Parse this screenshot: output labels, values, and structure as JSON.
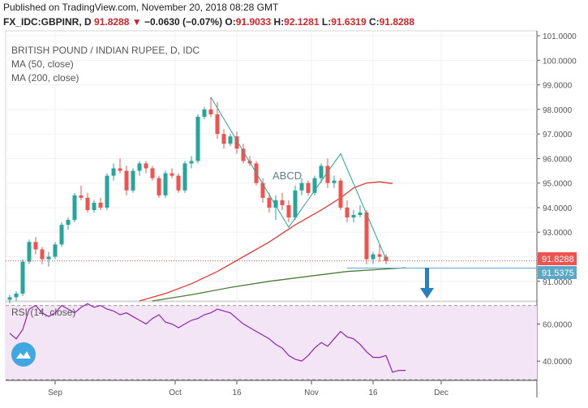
{
  "header": {
    "published": "Published on TradingView.com, November 20, 2018 08:28 GMT",
    "symbol": "FX_IDC:GBPINR, D",
    "last": "91.8288",
    "change_arrow": "▼",
    "change": "−0.0630 (−0.07%)",
    "o_label": "O:",
    "o_value": "91.9033",
    "h_label": "H:",
    "h_value": "92.1281",
    "l_label": "L:",
    "l_value": "91.6319",
    "c_label": "C:",
    "c_value": "91.8288"
  },
  "legend": {
    "title": "BRITISH POUND / INDIAN RUPEE, D, IDC",
    "ma50": "MA (50, close)",
    "ma200": "MA (200, close)",
    "rsi": "RSI (14, close)"
  },
  "annotations": {
    "abcd": "ABCD",
    "price_tag": "91.8288",
    "target_tag": "91.5375"
  },
  "colors": {
    "up": "#26a69a",
    "down": "#ef5350",
    "ma50": "#e53935",
    "ma200": "#4e7a3a",
    "rsi": "#8e24aa",
    "rsi_band": "#f3e5f5",
    "pattern": "#26a69a",
    "target_line": "#5aa9c6",
    "arrow": "#2a7fc1"
  },
  "icons": {
    "rsi_badge": "cloud-icon",
    "arrow": "down-arrow-icon"
  },
  "chart_data": {
    "type": "candlestick",
    "price_axis": {
      "ticks": [
        "101.0000",
        "100.0000",
        "99.0000",
        "98.0000",
        "97.0000",
        "96.0000",
        "95.0000",
        "94.0000",
        "93.0000",
        "92.0000",
        "91.0000"
      ],
      "ylim": [
        90.2,
        101.2
      ]
    },
    "x_axis": {
      "ticks": [
        "Sep",
        "Oct",
        "16",
        "Nov",
        "16",
        "Dec"
      ]
    },
    "candles": [
      {
        "o": 90.25,
        "h": 90.45,
        "l": 90.1,
        "c": 90.35
      },
      {
        "o": 90.35,
        "h": 90.6,
        "l": 90.2,
        "c": 90.5
      },
      {
        "o": 90.5,
        "h": 91.9,
        "l": 90.4,
        "c": 91.8
      },
      {
        "o": 91.8,
        "h": 92.7,
        "l": 91.7,
        "c": 92.6
      },
      {
        "o": 92.6,
        "h": 92.8,
        "l": 92.1,
        "c": 92.3
      },
      {
        "o": 92.3,
        "h": 92.4,
        "l": 91.7,
        "c": 91.9
      },
      {
        "o": 91.9,
        "h": 92.2,
        "l": 91.6,
        "c": 92.0
      },
      {
        "o": 92.0,
        "h": 92.6,
        "l": 91.9,
        "c": 92.5
      },
      {
        "o": 92.5,
        "h": 93.4,
        "l": 92.4,
        "c": 93.3
      },
      {
        "o": 93.3,
        "h": 93.6,
        "l": 93.1,
        "c": 93.5
      },
      {
        "o": 93.5,
        "h": 94.6,
        "l": 93.4,
        "c": 94.5
      },
      {
        "o": 94.5,
        "h": 94.9,
        "l": 94.3,
        "c": 94.4
      },
      {
        "o": 94.4,
        "h": 94.6,
        "l": 93.8,
        "c": 93.9
      },
      {
        "o": 93.9,
        "h": 94.3,
        "l": 93.8,
        "c": 94.2
      },
      {
        "o": 94.2,
        "h": 94.4,
        "l": 93.9,
        "c": 94.0
      },
      {
        "o": 94.0,
        "h": 95.4,
        "l": 93.9,
        "c": 95.3
      },
      {
        "o": 95.3,
        "h": 95.8,
        "l": 95.1,
        "c": 95.6
      },
      {
        "o": 95.6,
        "h": 96.0,
        "l": 95.4,
        "c": 95.5
      },
      {
        "o": 95.5,
        "h": 95.7,
        "l": 94.5,
        "c": 94.7
      },
      {
        "o": 94.7,
        "h": 95.6,
        "l": 94.6,
        "c": 95.5
      },
      {
        "o": 95.5,
        "h": 95.9,
        "l": 95.3,
        "c": 95.8
      },
      {
        "o": 95.8,
        "h": 95.9,
        "l": 95.4,
        "c": 95.6
      },
      {
        "o": 95.6,
        "h": 95.7,
        "l": 95.1,
        "c": 95.2
      },
      {
        "o": 95.2,
        "h": 95.3,
        "l": 94.4,
        "c": 94.5
      },
      {
        "o": 94.5,
        "h": 95.5,
        "l": 94.4,
        "c": 95.4
      },
      {
        "o": 95.4,
        "h": 95.6,
        "l": 95.2,
        "c": 95.3
      },
      {
        "o": 95.3,
        "h": 95.4,
        "l": 94.6,
        "c": 94.7
      },
      {
        "o": 94.7,
        "h": 95.9,
        "l": 94.6,
        "c": 95.8
      },
      {
        "o": 95.8,
        "h": 96.1,
        "l": 95.6,
        "c": 95.9
      },
      {
        "o": 95.9,
        "h": 97.8,
        "l": 95.8,
        "c": 97.7
      },
      {
        "o": 97.7,
        "h": 98.1,
        "l": 97.6,
        "c": 98.0
      },
      {
        "o": 98.0,
        "h": 98.5,
        "l": 97.7,
        "c": 97.8
      },
      {
        "o": 97.8,
        "h": 98.3,
        "l": 96.8,
        "c": 97.0
      },
      {
        "o": 97.0,
        "h": 97.2,
        "l": 96.4,
        "c": 96.6
      },
      {
        "o": 96.6,
        "h": 97.0,
        "l": 96.5,
        "c": 96.9
      },
      {
        "o": 96.9,
        "h": 97.1,
        "l": 96.2,
        "c": 96.4
      },
      {
        "o": 96.4,
        "h": 96.6,
        "l": 95.8,
        "c": 95.9
      },
      {
        "o": 95.9,
        "h": 96.1,
        "l": 95.7,
        "c": 95.8
      },
      {
        "o": 95.8,
        "h": 95.9,
        "l": 94.9,
        "c": 95.0
      },
      {
        "o": 95.0,
        "h": 95.2,
        "l": 94.2,
        "c": 94.4
      },
      {
        "o": 94.4,
        "h": 94.6,
        "l": 93.8,
        "c": 94.0
      },
      {
        "o": 94.0,
        "h": 94.5,
        "l": 93.5,
        "c": 94.3
      },
      {
        "o": 94.3,
        "h": 94.6,
        "l": 93.9,
        "c": 94.1
      },
      {
        "o": 94.1,
        "h": 94.3,
        "l": 93.4,
        "c": 93.6
      },
      {
        "o": 93.6,
        "h": 94.9,
        "l": 93.5,
        "c": 94.7
      },
      {
        "o": 94.7,
        "h": 95.2,
        "l": 94.5,
        "c": 95.0
      },
      {
        "o": 95.0,
        "h": 95.1,
        "l": 94.5,
        "c": 94.6
      },
      {
        "o": 94.6,
        "h": 95.3,
        "l": 94.5,
        "c": 95.2
      },
      {
        "o": 95.2,
        "h": 95.8,
        "l": 95.0,
        "c": 95.7
      },
      {
        "o": 95.7,
        "h": 96.0,
        "l": 94.8,
        "c": 95.0
      },
      {
        "o": 95.0,
        "h": 95.3,
        "l": 94.8,
        "c": 95.1
      },
      {
        "o": 95.1,
        "h": 95.2,
        "l": 93.9,
        "c": 94.0
      },
      {
        "o": 94.0,
        "h": 94.3,
        "l": 93.4,
        "c": 93.6
      },
      {
        "o": 93.6,
        "h": 93.9,
        "l": 93.4,
        "c": 93.7
      },
      {
        "o": 93.7,
        "h": 94.1,
        "l": 93.6,
        "c": 93.8
      },
      {
        "o": 93.8,
        "h": 93.9,
        "l": 91.7,
        "c": 91.9
      },
      {
        "o": 91.9,
        "h": 92.2,
        "l": 91.7,
        "c": 92.1
      },
      {
        "o": 92.1,
        "h": 92.5,
        "l": 91.8,
        "c": 92.0
      },
      {
        "o": 92.0,
        "h": 92.1,
        "l": 91.7,
        "c": 91.83
      }
    ],
    "ma50": [
      [
        20,
        90.2
      ],
      [
        24,
        90.5
      ],
      [
        28,
        90.9
      ],
      [
        32,
        91.4
      ],
      [
        36,
        92.0
      ],
      [
        40,
        92.6
      ],
      [
        44,
        93.3
      ],
      [
        48,
        93.9
      ],
      [
        51,
        94.4
      ],
      [
        53,
        94.8
      ],
      [
        55,
        95.0
      ],
      [
        57,
        95.05
      ],
      [
        59,
        94.98
      ]
    ],
    "ma200": [
      [
        22,
        90.2
      ],
      [
        28,
        90.45
      ],
      [
        34,
        90.75
      ],
      [
        40,
        91.0
      ],
      [
        46,
        91.2
      ],
      [
        52,
        91.4
      ],
      [
        58,
        91.5
      ],
      [
        61,
        91.55
      ]
    ],
    "abcd_pattern": [
      {
        "i": 31,
        "price": 98.5
      },
      {
        "i": 43,
        "price": 93.2
      },
      {
        "i": 51,
        "price": 96.2
      },
      {
        "i": 58,
        "price": 91.9
      }
    ],
    "target": 91.5375,
    "rsi": {
      "ticks": [
        "60.0000",
        "40.0000"
      ],
      "ylim": [
        30,
        72
      ],
      "values": [
        55,
        52,
        57,
        68,
        70,
        66,
        64,
        66,
        70,
        68,
        66,
        69,
        71,
        69,
        70,
        68,
        67,
        65,
        66,
        64,
        62,
        60,
        63,
        65,
        61,
        60,
        58,
        60,
        62,
        63,
        65,
        66,
        68,
        67,
        66,
        63,
        60,
        58,
        56,
        54,
        52,
        49,
        47,
        43,
        41,
        40,
        43,
        47,
        50,
        48,
        52,
        56,
        53,
        52,
        49,
        45,
        42,
        42,
        43,
        34,
        35,
        35
      ]
    }
  }
}
